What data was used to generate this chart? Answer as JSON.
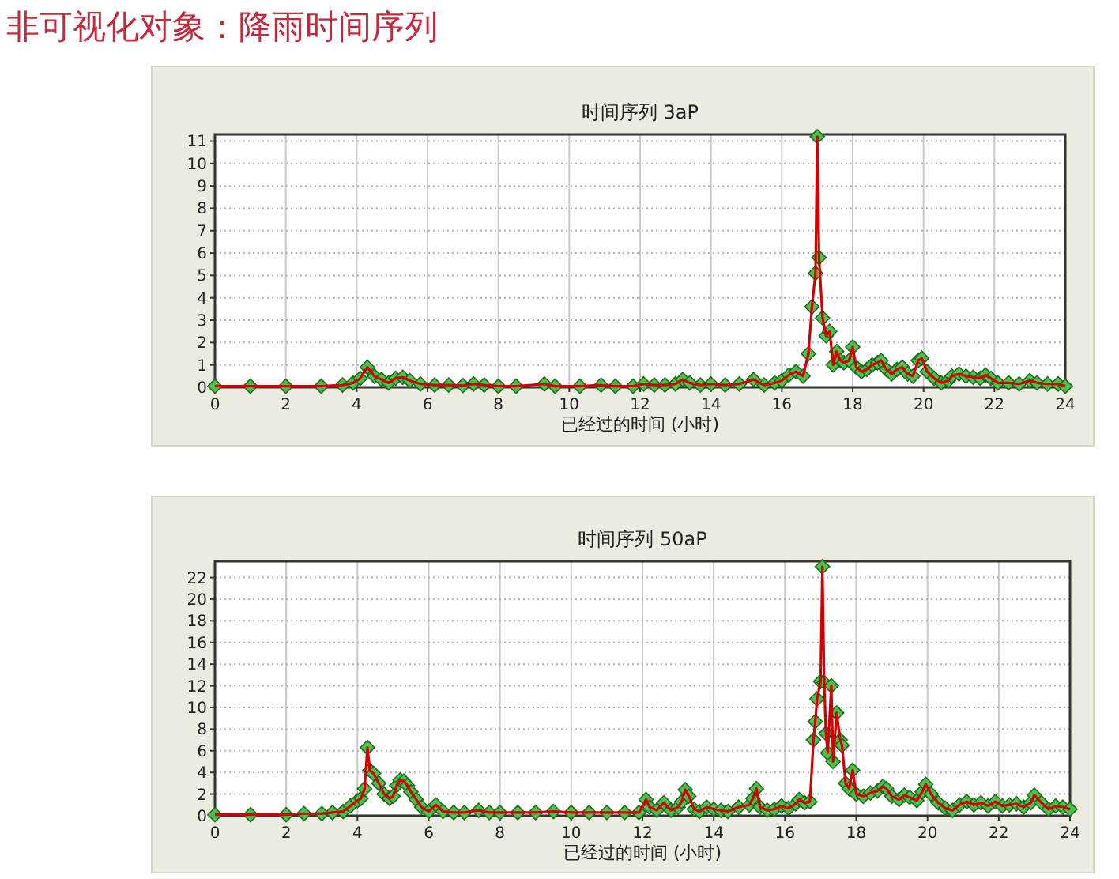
{
  "chart_data": [
    {
      "type": "line",
      "title": "时间序列 3aP",
      "xlabel": "已经过的时间 (小时)",
      "annotations": [
        "非可视化对象：降雨时间序列"
      ],
      "xlim": [
        0,
        24
      ],
      "xticks": [
        0,
        2,
        4,
        6,
        8,
        10,
        12,
        14,
        16,
        18,
        20,
        22,
        24
      ],
      "ylim": [
        0,
        11.3
      ],
      "yticks": [
        0,
        1,
        2,
        3,
        4,
        5,
        6,
        7,
        8,
        9,
        10,
        11
      ],
      "grid": true,
      "marker": "diamond",
      "line_style": "solid",
      "series": [
        {
          "color": "#d40000",
          "x": [
            0,
            1,
            2,
            3,
            3.6,
            3.9,
            4.1,
            4.3,
            4.5,
            4.7,
            4.9,
            5.1,
            5.3,
            5.5,
            5.8,
            6.2,
            6.6,
            7.0,
            7.3,
            7.6,
            8.0,
            8.5,
            9.3,
            9.6,
            10.3,
            10.9,
            11.3,
            11.8,
            12.1,
            12.4,
            12.7,
            13.0,
            13.2,
            13.4,
            13.7,
            14.0,
            14.4,
            14.8,
            15.2,
            15.5,
            15.8,
            16.0,
            16.2,
            16.4,
            16.6,
            16.75,
            16.85,
            16.95,
            17.0,
            17.05,
            17.15,
            17.25,
            17.35,
            17.45,
            17.55,
            17.65,
            17.75,
            17.9,
            18.0,
            18.1,
            18.25,
            18.4,
            18.55,
            18.7,
            18.8,
            18.95,
            19.1,
            19.25,
            19.4,
            19.55,
            19.7,
            19.85,
            19.95,
            20.1,
            20.3,
            20.5,
            20.7,
            20.8,
            21.0,
            21.2,
            21.4,
            21.6,
            21.75,
            21.9,
            22.1,
            22.4,
            22.7,
            23.0,
            23.2,
            23.5,
            23.8,
            24
          ],
          "values": [
            0.05,
            0.05,
            0.05,
            0.05,
            0.1,
            0.2,
            0.4,
            0.9,
            0.5,
            0.35,
            0.2,
            0.4,
            0.45,
            0.3,
            0.15,
            0.1,
            0.1,
            0.08,
            0.15,
            0.1,
            0.05,
            0.05,
            0.15,
            0.05,
            0.05,
            0.1,
            0.05,
            0.05,
            0.15,
            0.1,
            0.1,
            0.15,
            0.35,
            0.2,
            0.1,
            0.15,
            0.1,
            0.15,
            0.35,
            0.1,
            0.2,
            0.3,
            0.55,
            0.7,
            0.5,
            1.5,
            3.6,
            5.1,
            11.2,
            5.8,
            3.1,
            2.3,
            2.5,
            1.0,
            1.6,
            1.2,
            1.1,
            1.2,
            1.8,
            0.9,
            0.7,
            0.8,
            1.0,
            1.1,
            1.2,
            0.8,
            0.6,
            0.8,
            0.9,
            0.6,
            0.5,
            1.2,
            1.3,
            0.7,
            0.4,
            0.2,
            0.3,
            0.5,
            0.6,
            0.5,
            0.45,
            0.4,
            0.55,
            0.4,
            0.2,
            0.2,
            0.15,
            0.3,
            0.2,
            0.15,
            0.15,
            0.05
          ]
        }
      ]
    },
    {
      "type": "line",
      "title": "时间序列 50aP",
      "xlabel": "已经过的时间 (小时)",
      "xlim": [
        0,
        24
      ],
      "xticks": [
        0,
        2,
        4,
        6,
        8,
        10,
        12,
        14,
        16,
        18,
        20,
        22,
        24
      ],
      "ylim": [
        0,
        23.5
      ],
      "yticks": [
        0,
        2,
        4,
        6,
        8,
        10,
        12,
        14,
        16,
        18,
        20,
        22
      ],
      "grid": true,
      "marker": "diamond",
      "line_style": "solid",
      "series": [
        {
          "color": "#d40000",
          "x": [
            0,
            1,
            2,
            2.5,
            3,
            3.3,
            3.6,
            3.8,
            4.0,
            4.1,
            4.2,
            4.28,
            4.35,
            4.45,
            4.6,
            4.75,
            4.9,
            5.0,
            5.1,
            5.2,
            5.3,
            5.4,
            5.5,
            5.65,
            5.8,
            6.0,
            6.2,
            6.4,
            6.7,
            7.0,
            7.4,
            7.7,
            8.0,
            8.5,
            9.0,
            9.5,
            10.0,
            10.5,
            11.0,
            11.5,
            11.9,
            12.1,
            12.2,
            12.4,
            12.6,
            12.8,
            13.0,
            13.1,
            13.2,
            13.3,
            13.45,
            13.6,
            13.8,
            14.0,
            14.2,
            14.4,
            14.7,
            15.0,
            15.1,
            15.2,
            15.3,
            15.5,
            15.7,
            15.9,
            16.1,
            16.3,
            16.4,
            16.55,
            16.7,
            16.8,
            16.85,
            16.9,
            17.0,
            17.05,
            17.1,
            17.15,
            17.2,
            17.3,
            17.35,
            17.45,
            17.55,
            17.6,
            17.7,
            17.8,
            17.9,
            18.0,
            18.2,
            18.4,
            18.6,
            18.75,
            18.85,
            19.0,
            19.2,
            19.35,
            19.5,
            19.7,
            19.85,
            19.95,
            20.1,
            20.3,
            20.5,
            20.7,
            20.9,
            21.1,
            21.3,
            21.5,
            21.7,
            21.9,
            22.1,
            22.3,
            22.5,
            22.7,
            22.9,
            23.0,
            23.2,
            23.4,
            23.6,
            23.8,
            24
          ],
          "values": [
            0.1,
            0.1,
            0.1,
            0.2,
            0.2,
            0.3,
            0.4,
            0.9,
            1.4,
            1.6,
            2.5,
            6.3,
            4.2,
            3.9,
            3.0,
            2.0,
            1.6,
            1.8,
            2.8,
            3.3,
            3.2,
            2.8,
            2.2,
            1.5,
            0.8,
            0.4,
            1.0,
            0.4,
            0.3,
            0.3,
            0.5,
            0.3,
            0.3,
            0.3,
            0.3,
            0.4,
            0.3,
            0.3,
            0.3,
            0.3,
            0.3,
            1.5,
            0.8,
            0.5,
            1.2,
            0.5,
            0.8,
            1.3,
            2.4,
            1.8,
            0.6,
            0.4,
            0.8,
            0.6,
            0.5,
            0.4,
            0.8,
            1.0,
            1.6,
            2.5,
            0.8,
            0.5,
            0.6,
            0.9,
            0.7,
            1.1,
            1.5,
            1.2,
            1.3,
            7.0,
            8.7,
            10.8,
            12.4,
            23.0,
            12.3,
            7.6,
            5.8,
            12.0,
            5.0,
            9.5,
            7.0,
            6.5,
            3.0,
            2.5,
            4.2,
            2.0,
            1.8,
            2.1,
            2.3,
            2.7,
            2.5,
            1.8,
            1.5,
            1.9,
            1.7,
            1.4,
            2.2,
            2.9,
            2.0,
            1.2,
            0.7,
            0.5,
            1.0,
            1.3,
            1.0,
            1.2,
            0.9,
            1.3,
            0.9,
            1.0,
            1.1,
            0.8,
            1.2,
            1.9,
            1.2,
            0.6,
            0.9,
            0.8,
            0.6
          ]
        }
      ]
    }
  ]
}
